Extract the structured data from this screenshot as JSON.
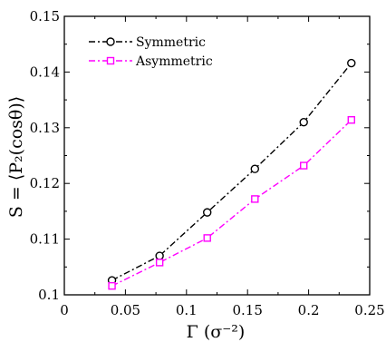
{
  "chart_data": {
    "type": "line",
    "xlabel": "Γ (σ⁻²)",
    "ylabel": "S = ⟨P₂(cosθ)⟩",
    "xlim": [
      0,
      0.25
    ],
    "ylim": [
      0.1,
      0.15
    ],
    "xticks": [
      "0",
      "0.05",
      "0.1",
      "0.15",
      "0.2",
      "0.25"
    ],
    "yticks": [
      "0.1",
      "0.11",
      "0.12",
      "0.13",
      "0.14",
      "0.15"
    ],
    "xtick_values": [
      0,
      0.05,
      0.1,
      0.15,
      0.2,
      0.25
    ],
    "ytick_values": [
      0.1,
      0.11,
      0.12,
      0.13,
      0.14,
      0.15
    ],
    "legend_position": "top-left",
    "grid": false,
    "series": [
      {
        "name": "Symmetric",
        "color": "#000000",
        "marker": "circle",
        "x": [
          0.039,
          0.078,
          0.117,
          0.156,
          0.196,
          0.235
        ],
        "y": [
          0.1026,
          0.107,
          0.1148,
          0.1226,
          0.131,
          0.1416
        ]
      },
      {
        "name": "Asymmetric",
        "color": "#ff00ff",
        "marker": "square",
        "x": [
          0.039,
          0.078,
          0.117,
          0.156,
          0.196,
          0.235
        ],
        "y": [
          0.1016,
          0.1058,
          0.1102,
          0.1172,
          0.1232,
          0.1314
        ]
      }
    ]
  }
}
